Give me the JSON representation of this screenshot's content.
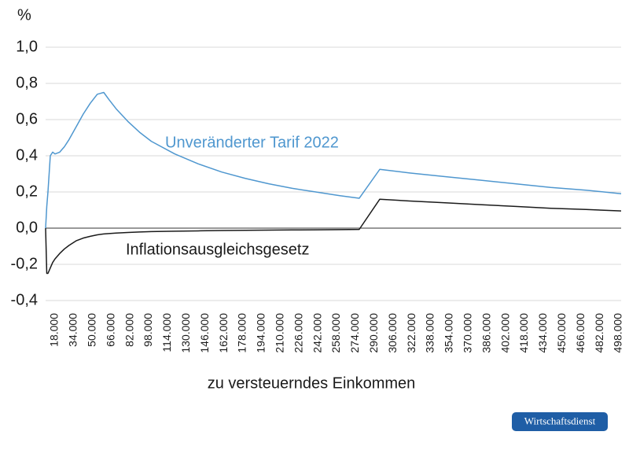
{
  "chart_data": {
    "type": "line",
    "y_label": "%",
    "x_label": "zu versteuerndes Einkommen",
    "x": [
      10000,
      11000,
      12000,
      14000,
      16000,
      18000,
      22000,
      26000,
      30000,
      36000,
      42000,
      48000,
      54000,
      59500,
      64000,
      70000,
      80000,
      90000,
      100000,
      120000,
      140000,
      160000,
      180000,
      200000,
      220000,
      240000,
      260000,
      277000,
      294500,
      320000,
      350000,
      380000,
      410000,
      440000,
      470000,
      500000
    ],
    "series": [
      {
        "name": "Unveränderter Tarif 2022",
        "color": "#4f97cf",
        "values": [
          0.0,
          0.12,
          0.2,
          0.4,
          0.42,
          0.41,
          0.42,
          0.45,
          0.49,
          0.56,
          0.63,
          0.69,
          0.74,
          0.75,
          0.71,
          0.66,
          0.59,
          0.53,
          0.48,
          0.41,
          0.355,
          0.31,
          0.275,
          0.245,
          0.22,
          0.2,
          0.18,
          0.165,
          0.325,
          0.305,
          0.285,
          0.265,
          0.245,
          0.225,
          0.21,
          0.19
        ]
      },
      {
        "name": "Inflationsausgleichsgesetz",
        "color": "#1a1a1a",
        "values": [
          0.0,
          -0.25,
          -0.25,
          -0.22,
          -0.19,
          -0.17,
          -0.14,
          -0.115,
          -0.095,
          -0.07,
          -0.055,
          -0.045,
          -0.037,
          -0.032,
          -0.03,
          -0.027,
          -0.024,
          -0.021,
          -0.019,
          -0.017,
          -0.015,
          -0.013,
          -0.012,
          -0.011,
          -0.01,
          -0.009,
          -0.008,
          -0.007,
          0.16,
          0.15,
          0.14,
          0.13,
          0.12,
          0.11,
          0.103,
          0.095
        ]
      }
    ],
    "xlim": [
      10000,
      500000
    ],
    "xticks": [
      {
        "value": 18000,
        "label": "18.000"
      },
      {
        "value": 34000,
        "label": "34.000"
      },
      {
        "value": 50000,
        "label": "50.000"
      },
      {
        "value": 66000,
        "label": "66.000"
      },
      {
        "value": 82000,
        "label": "82.000"
      },
      {
        "value": 98000,
        "label": "98.000"
      },
      {
        "value": 114000,
        "label": "114.000"
      },
      {
        "value": 130000,
        "label": "130.000"
      },
      {
        "value": 146000,
        "label": "146.000"
      },
      {
        "value": 162000,
        "label": "162.000"
      },
      {
        "value": 178000,
        "label": "178.000"
      },
      {
        "value": 194000,
        "label": "194.000"
      },
      {
        "value": 210000,
        "label": "210.000"
      },
      {
        "value": 226000,
        "label": "226.000"
      },
      {
        "value": 242000,
        "label": "242.000"
      },
      {
        "value": 258000,
        "label": "258.000"
      },
      {
        "value": 274000,
        "label": "274.000"
      },
      {
        "value": 290000,
        "label": "290.000"
      },
      {
        "value": 306000,
        "label": "306.000"
      },
      {
        "value": 322000,
        "label": "322.000"
      },
      {
        "value": 338000,
        "label": "338.000"
      },
      {
        "value": 354000,
        "label": "354.000"
      },
      {
        "value": 370000,
        "label": "370.000"
      },
      {
        "value": 386000,
        "label": "386.000"
      },
      {
        "value": 402000,
        "label": "402.000"
      },
      {
        "value": 418000,
        "label": "418.000"
      },
      {
        "value": 434000,
        "label": "434.000"
      },
      {
        "value": 450000,
        "label": "450.000"
      },
      {
        "value": 466000,
        "label": "466.000"
      },
      {
        "value": 482000,
        "label": "482.000"
      },
      {
        "value": 498000,
        "label": "498.000"
      }
    ],
    "ylim": [
      -0.4,
      1.0
    ],
    "yticks": [
      {
        "value": -0.4,
        "label": "-0,4"
      },
      {
        "value": -0.2,
        "label": "-0,2"
      },
      {
        "value": 0,
        "label": "0,0"
      },
      {
        "value": 0.2,
        "label": "0,2"
      },
      {
        "value": 0.4,
        "label": "0,4"
      },
      {
        "value": 0.6,
        "label": "0,6"
      },
      {
        "value": 0.8,
        "label": "0,8"
      },
      {
        "value": 1.0,
        "label": "1,0"
      }
    ],
    "grid": true
  },
  "brand": "Wirtschaftsdienst"
}
